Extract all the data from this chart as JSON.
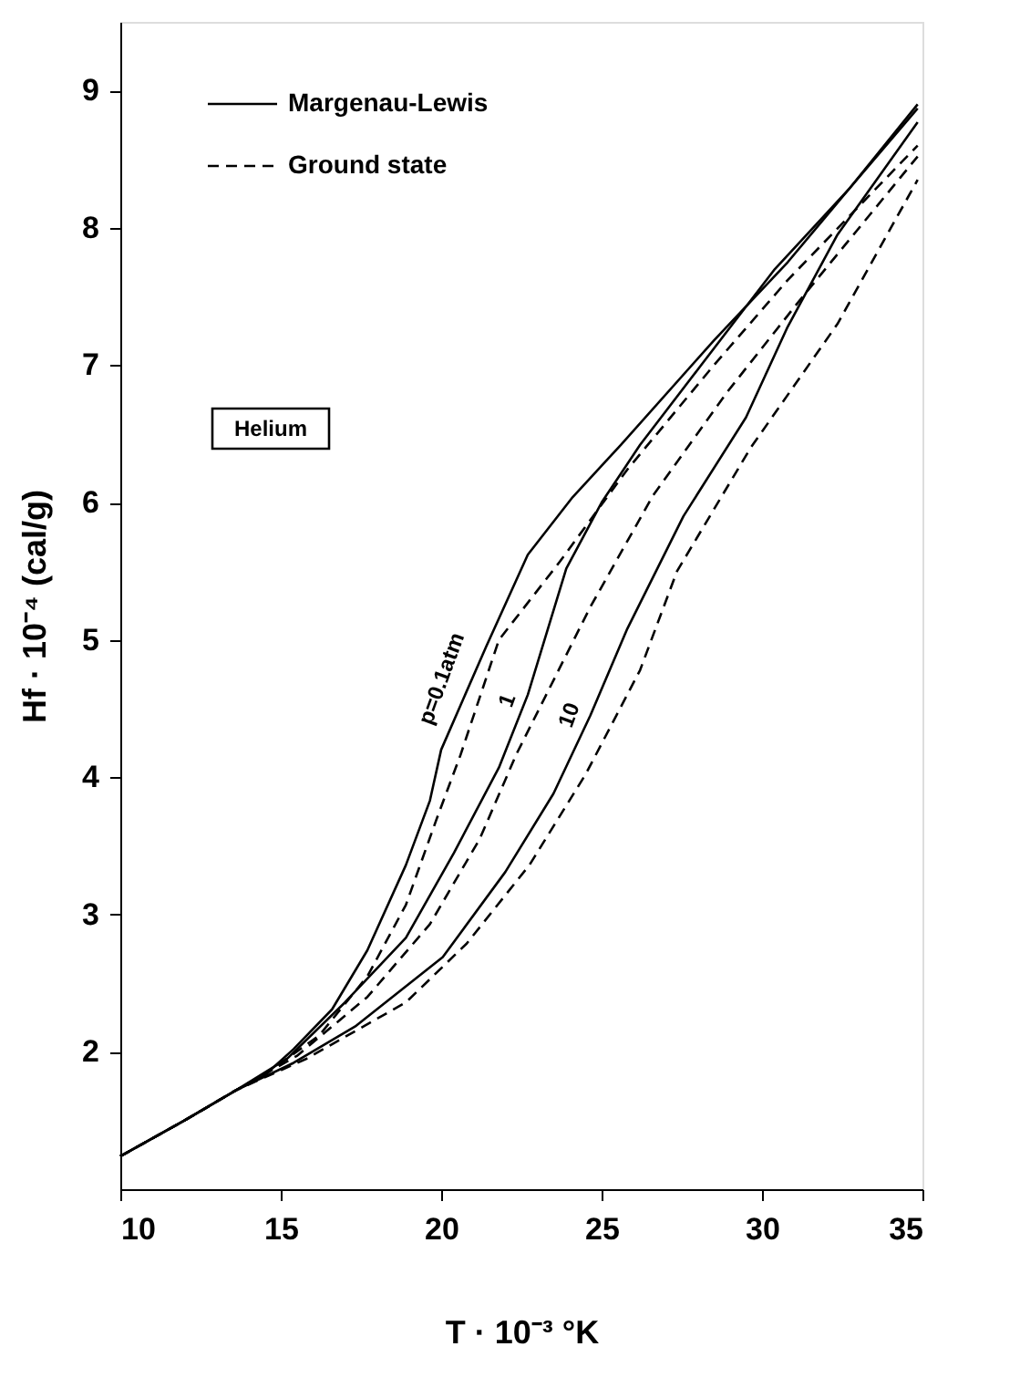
{
  "chart_data": {
    "type": "line",
    "xlabel": "T · 10⁻³ °K",
    "ylabel": "Hf · 10⁻⁴ (cal/g)",
    "xlim": [
      10,
      35
    ],
    "ylim": [
      1,
      9.5
    ],
    "xticks": [
      10,
      15,
      20,
      25,
      30,
      35
    ],
    "yticks": [
      2,
      3,
      4,
      5,
      6,
      7,
      8,
      9
    ],
    "grid": false,
    "legend": "top left",
    "marker": "none",
    "series": [
      {
        "name": "Margenau-Lewis",
        "color": "#000000",
        "line_style": "solid",
        "x": [
          10,
          12,
          13.6,
          14.5,
          15.4,
          16.6,
          17.7,
          18.9,
          19.65,
          20.0,
          21.4,
          22.7,
          24.1,
          25.6,
          28.5,
          30.8,
          32.7,
          34.85
        ],
        "values": [
          1.24,
          1.5,
          1.72,
          1.83,
          2.02,
          2.31,
          2.74,
          3.36,
          3.83,
          4.2,
          4.95,
          5.62,
          6.04,
          6.42,
          7.18,
          7.75,
          8.28,
          8.9
        ]
      },
      {
        "name": "Ground state",
        "color": "#000000",
        "line_style": "dashed",
        "x": [
          10,
          12,
          13.6,
          14.6,
          16.2,
          17.7,
          18.9,
          19.85,
          20.6,
          21.8,
          23.7,
          25.8,
          28.5,
          30.8,
          34.85
        ],
        "values": [
          1.24,
          1.5,
          1.72,
          1.85,
          2.12,
          2.55,
          3.07,
          3.69,
          4.16,
          5.0,
          5.57,
          6.24,
          7.0,
          7.62,
          8.6
        ]
      },
      {
        "color": "#000000",
        "line_style": "solid",
        "x": [
          10,
          12,
          13.6,
          15.2,
          17.0,
          18.9,
          20.4,
          21.8,
          22.7,
          23.9,
          25.0,
          26.2,
          28.1,
          30.4,
          32.7,
          34.85
        ],
        "values": [
          1.24,
          1.5,
          1.72,
          1.95,
          2.36,
          2.83,
          3.45,
          4.07,
          4.6,
          5.52,
          6.0,
          6.42,
          7.0,
          7.7,
          8.28,
          8.87
        ]
      },
      {
        "color": "#000000",
        "line_style": "dashed",
        "x": [
          10,
          12,
          13.6,
          15.5,
          17.7,
          19.65,
          21.2,
          22.35,
          24.65,
          26.6,
          28.9,
          31.2,
          34.85
        ],
        "values": [
          1.24,
          1.5,
          1.72,
          1.97,
          2.4,
          2.93,
          3.55,
          4.17,
          5.24,
          6.05,
          6.8,
          7.48,
          8.52
        ]
      },
      {
        "color": "#000000",
        "line_style": "solid",
        "x": [
          10,
          12,
          13.6,
          15.4,
          17.35,
          20.05,
          22.0,
          23.5,
          24.65,
          25.8,
          27.55,
          29.5,
          30.8,
          32.35,
          34.85
        ],
        "values": [
          1.24,
          1.5,
          1.72,
          1.92,
          2.19,
          2.69,
          3.31,
          3.88,
          4.45,
          5.08,
          5.9,
          6.62,
          7.28,
          7.95,
          8.77
        ]
      },
      {
        "color": "#000000",
        "line_style": "dashed",
        "x": [
          10,
          12,
          13.6,
          15.8,
          18.9,
          20.8,
          22.75,
          24.5,
          26.2,
          27.35,
          29.65,
          32.35,
          34.85
        ],
        "values": [
          1.24,
          1.5,
          1.72,
          1.95,
          2.36,
          2.79,
          3.36,
          4.02,
          4.78,
          5.5,
          6.4,
          7.3,
          8.35
        ]
      }
    ],
    "annotations": [
      "Helium",
      "p=0.1atm",
      "1",
      "10"
    ]
  }
}
